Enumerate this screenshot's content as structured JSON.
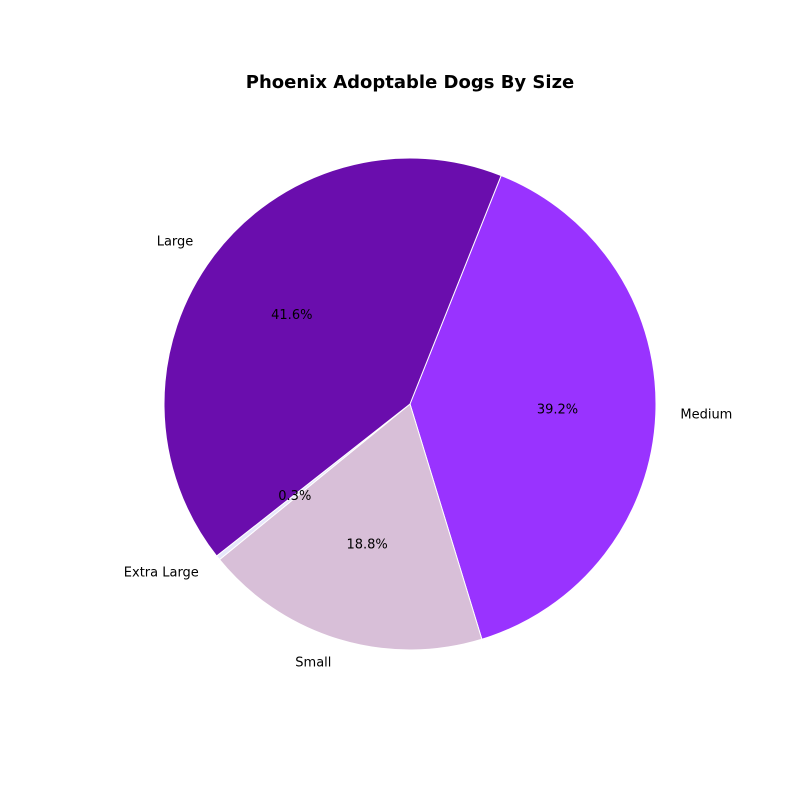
{
  "chart_data": {
    "type": "pie",
    "title": "Phoenix Adoptable Dogs By Size",
    "slices": [
      {
        "label": "Medium",
        "pct_label": "39.2%",
        "value": 39.2,
        "color": "#9933ff"
      },
      {
        "label": "Small",
        "pct_label": "18.8%",
        "value": 18.8,
        "color": "#d8bfd8"
      },
      {
        "label": "Extra Large",
        "pct_label": "0.3%",
        "value": 0.3,
        "color": "#e6e6fa"
      },
      {
        "label": "Large",
        "pct_label": "41.6%",
        "value": 41.6,
        "color": "#6a0dad"
      }
    ]
  }
}
